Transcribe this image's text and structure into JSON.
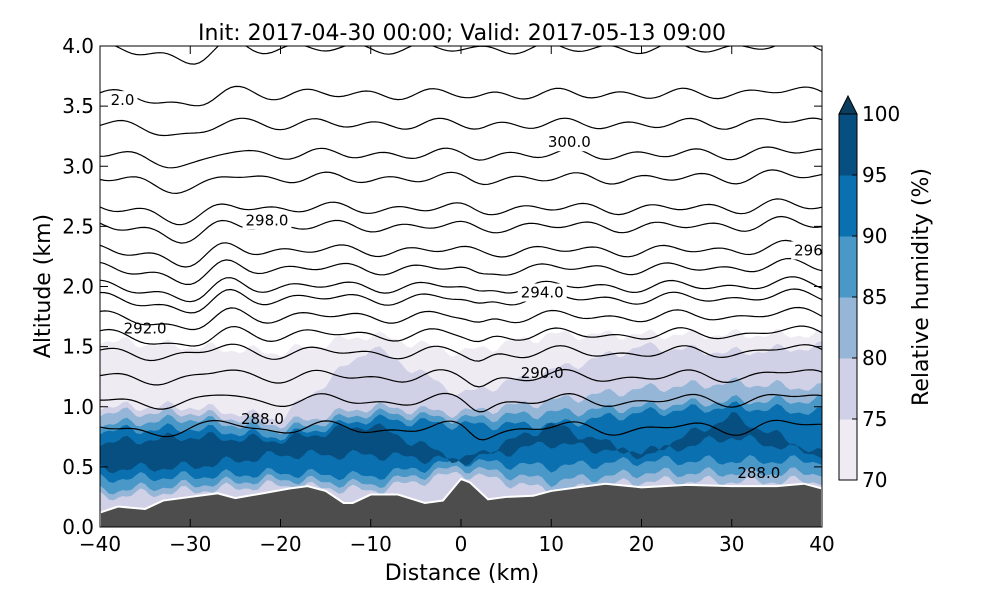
{
  "chart_data": {
    "type": "contour",
    "title": "Init: 2017-04-30 00:00; Valid: 2017-05-13 09:00",
    "xlabel": "Distance (km)",
    "ylabel": "Altitude (km)",
    "xlim": [
      -40,
      40
    ],
    "ylim": [
      0,
      4
    ],
    "xticks": [
      "−40",
      "−30",
      "−20",
      "−10",
      "0",
      "10",
      "20",
      "30",
      "40"
    ],
    "xtick_values": [
      -40,
      -30,
      -20,
      -10,
      0,
      10,
      20,
      30,
      40
    ],
    "yticks": [
      "0.0",
      "0.5",
      "1.0",
      "1.5",
      "2.0",
      "2.5",
      "3.0",
      "3.5",
      "4.0"
    ],
    "ytick_values": [
      0,
      0.5,
      1,
      1.5,
      2,
      2.5,
      3,
      3.5,
      4
    ],
    "colorbar": {
      "label": "Relative humidity (%)",
      "ticks": [
        "70",
        "75",
        "80",
        "85",
        "90",
        "95",
        "100"
      ],
      "levels": [
        70,
        75,
        80,
        85,
        90,
        95,
        100
      ],
      "colors": [
        "#efebf3",
        "#d0d1e6",
        "#96b6d8",
        "#4a98c8",
        "#0a70b0",
        "#074f80"
      ],
      "extend_color": "#0b3e5e"
    },
    "rh_x": [
      -40,
      -30,
      -20,
      -10,
      0,
      10,
      20,
      30,
      40
    ],
    "rh_bands": [
      {
        "level": 70,
        "top": [
          1.55,
          1.5,
          1.45,
          1.6,
          1.45,
          1.6,
          1.6,
          1.6,
          1.6
        ],
        "bottom": null
      },
      {
        "level": 75,
        "top": [
          1.0,
          1.0,
          0.9,
          1.5,
          1.1,
          1.3,
          1.5,
          1.45,
          1.5
        ],
        "bottom": null
      },
      {
        "level": 80,
        "top": [
          0.95,
          0.95,
          0.85,
          1.0,
          0.95,
          1.05,
          1.15,
          1.2,
          1.15
        ],
        "bottom": [
          0.25,
          0.3,
          0.35,
          0.3,
          0.45,
          0.3,
          0.38,
          0.38,
          0.38
        ]
      },
      {
        "level": 85,
        "top": [
          0.85,
          0.9,
          0.8,
          0.95,
          0.9,
          0.95,
          1.0,
          1.05,
          1.05
        ],
        "bottom": [
          0.3,
          0.35,
          0.4,
          0.35,
          0.5,
          0.38,
          0.45,
          0.45,
          0.45
        ]
      },
      {
        "level": 90,
        "top": [
          0.8,
          0.82,
          0.75,
          0.9,
          0.85,
          0.85,
          0.95,
          1.0,
          0.95
        ],
        "bottom": [
          0.4,
          0.42,
          0.45,
          0.42,
          0.55,
          0.5,
          0.55,
          0.55,
          0.55
        ]
      },
      {
        "level": 95,
        "top": [
          0.7,
          0.75,
          0.72,
          0.85,
          0.55,
          0.85,
          0.6,
          0.92,
          0.6
        ],
        "bottom": [
          0.48,
          0.5,
          0.6,
          0.6,
          0.55,
          0.7,
          0.6,
          0.75,
          0.6
        ]
      }
    ],
    "terrain": {
      "x": [
        -40,
        -38,
        -35,
        -33,
        -30,
        -27,
        -25,
        -22,
        -19,
        -17,
        -15,
        -13,
        -12,
        -10,
        -7,
        -4,
        -2,
        0,
        1,
        3,
        5,
        8,
        10,
        13,
        16,
        20,
        25,
        30,
        35,
        38,
        40
      ],
      "altitude": [
        0.12,
        0.17,
        0.15,
        0.22,
        0.25,
        0.28,
        0.24,
        0.28,
        0.32,
        0.34,
        0.3,
        0.2,
        0.2,
        0.27,
        0.27,
        0.2,
        0.22,
        0.4,
        0.37,
        0.23,
        0.25,
        0.26,
        0.3,
        0.33,
        0.36,
        0.33,
        0.35,
        0.34,
        0.34,
        0.36,
        0.32
      ]
    },
    "isentrope_base_altitudes": [
      0.82,
      1.05,
      1.25,
      1.45,
      1.6,
      1.75,
      1.9,
      2.0,
      2.15,
      2.3,
      2.5,
      2.65,
      2.9,
      3.1,
      3.35,
      3.6,
      3.98
    ],
    "contour_labels": [
      {
        "text": "2.0",
        "x": -37.5,
        "y": 3.55
      },
      {
        "text": "300.0",
        "x": 12,
        "y": 3.2
      },
      {
        "text": "298.0",
        "x": -21.5,
        "y": 2.55
      },
      {
        "text": "296",
        "x": 38.5,
        "y": 2.3
      },
      {
        "text": "294.0",
        "x": 9,
        "y": 1.95
      },
      {
        "text": "292.0",
        "x": -35,
        "y": 1.65
      },
      {
        "text": "290.0",
        "x": 9,
        "y": 1.28
      },
      {
        "text": "288.0",
        "x": -22,
        "y": 0.9
      },
      {
        "text": "288.0",
        "x": 33,
        "y": 0.45
      }
    ]
  }
}
